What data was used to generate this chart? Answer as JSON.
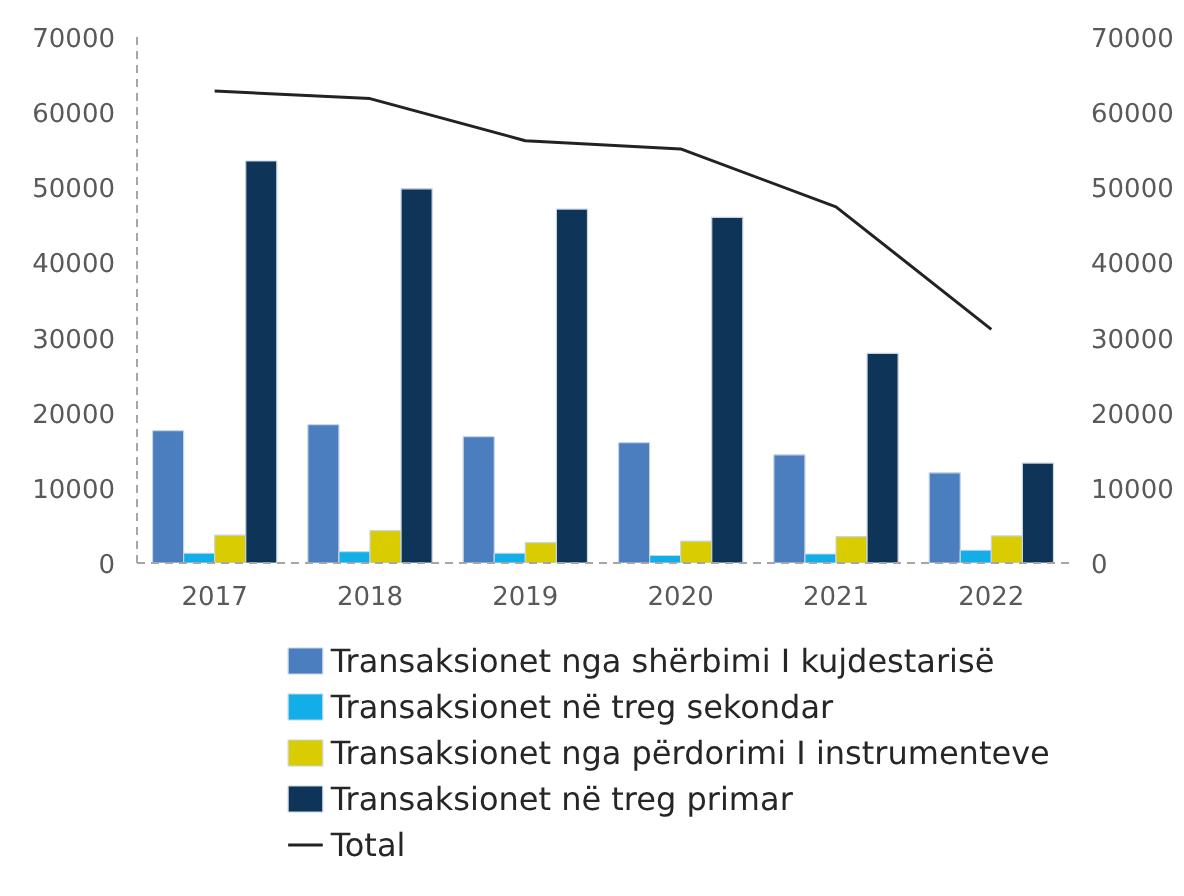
{
  "chart_data": {
    "type": "bar",
    "categories": [
      "2017",
      "2018",
      "2019",
      "2020",
      "2021",
      "2022"
    ],
    "series": [
      {
        "name": "Transaksionet nga shërbimi I kujdestarisë",
        "color": "#4a7ebf",
        "values": [
          17600,
          18400,
          16800,
          16000,
          14400,
          12000
        ]
      },
      {
        "name": "Transaksionet  në treg sekondar",
        "color": "#12aee8",
        "values": [
          1300,
          1500,
          1300,
          1000,
          1200,
          1700
        ]
      },
      {
        "name": "Transaksionet nga përdorimi I instrumenteve",
        "color": "#d9cc00",
        "values": [
          3700,
          4300,
          2700,
          2900,
          3500,
          3600
        ]
      },
      {
        "name": "Transaksionet në treg primar",
        "color": "#0e3558",
        "values": [
          53500,
          49800,
          47100,
          46000,
          27900,
          13300
        ]
      },
      {
        "name": "Total",
        "type": "line",
        "axis": "y2",
        "color": "#222222",
        "values": [
          62800,
          61800,
          56200,
          55100,
          47400,
          31100
        ]
      }
    ],
    "ylim": [
      0,
      70000
    ],
    "yticks": [
      0,
      10000,
      20000,
      30000,
      40000,
      50000,
      60000,
      70000
    ],
    "y2lim": [
      0,
      70000
    ],
    "y2ticks": [
      0,
      10000,
      20000,
      30000,
      40000,
      50000,
      60000,
      70000
    ],
    "grid": false,
    "legend": "bottom"
  }
}
